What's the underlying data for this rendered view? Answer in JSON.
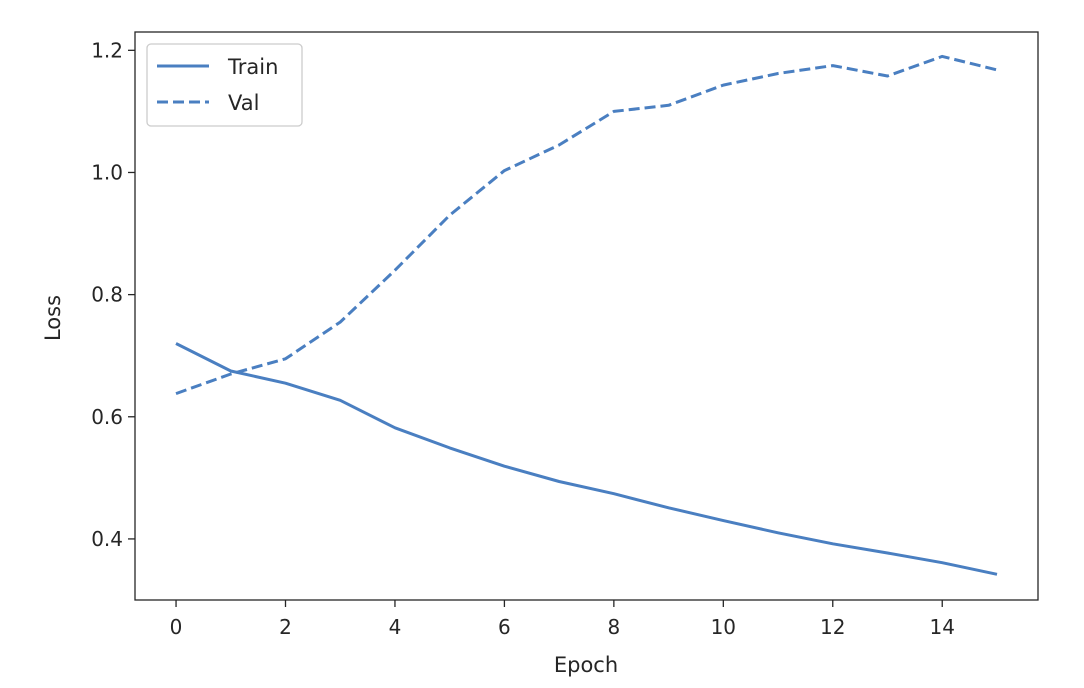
{
  "chart_data": {
    "type": "line",
    "title": "",
    "xlabel": "Epoch",
    "ylabel": "Loss",
    "x": [
      0,
      1,
      2,
      3,
      4,
      5,
      6,
      7,
      8,
      9,
      10,
      11,
      12,
      13,
      14,
      15
    ],
    "series": [
      {
        "name": "Train",
        "style": "solid",
        "color": "#4a7fc1",
        "values": [
          0.72,
          0.675,
          0.655,
          0.627,
          0.582,
          0.549,
          0.519,
          0.494,
          0.474,
          0.451,
          0.43,
          0.41,
          0.392,
          0.377,
          0.361,
          0.342
        ]
      },
      {
        "name": "Val",
        "style": "dashed",
        "color": "#4a7fc1",
        "values": [
          0.638,
          0.67,
          0.695,
          0.755,
          0.84,
          0.93,
          1.003,
          1.045,
          1.1,
          1.11,
          1.143,
          1.162,
          1.175,
          1.158,
          1.19,
          1.168
        ]
      }
    ],
    "xlim": [
      -0.75,
      15.75
    ],
    "ylim": [
      0.3,
      1.23
    ],
    "xticks": [
      0,
      2,
      4,
      6,
      8,
      10,
      12,
      14
    ],
    "yticks": [
      0.4,
      0.6,
      0.8,
      1.0,
      1.2
    ],
    "xtick_labels": [
      "0",
      "2",
      "4",
      "6",
      "8",
      "10",
      "12",
      "14"
    ],
    "ytick_labels": [
      "0.4",
      "0.6",
      "0.8",
      "1.0",
      "1.2"
    ],
    "legend_position": "top-left",
    "grid": false
  }
}
